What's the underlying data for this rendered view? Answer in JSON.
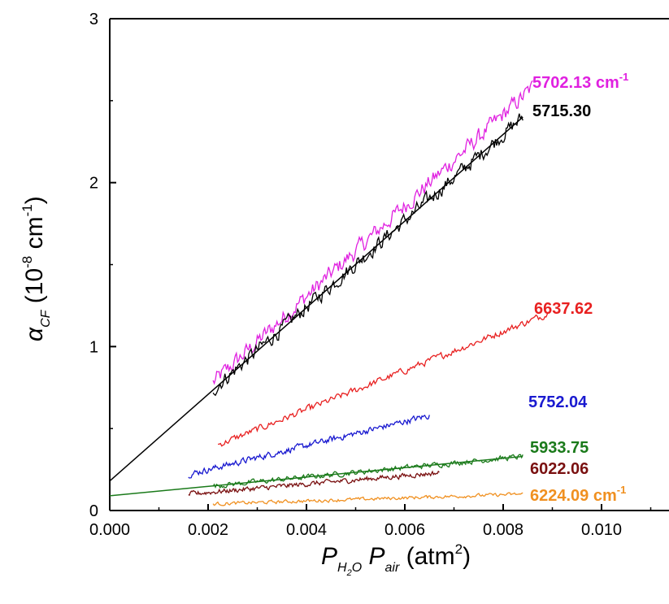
{
  "chart_data": {
    "type": "line",
    "xlabel": {
      "main": "P",
      "sub1": "H",
      "sub1b": "2",
      "sub1c": "O",
      "mid": " P",
      "sub2": "air",
      "unit_open": " (atm",
      "sup": "2",
      "unit_close": ")"
    },
    "ylabel": {
      "main": "α",
      "sub": "CF",
      "unit_open": " (10",
      "sup1": "-8",
      "unit_mid": " cm",
      "sup2": "-1",
      "unit_close": ")"
    },
    "xlim": [
      0.0,
      0.012
    ],
    "ylim": [
      0,
      3
    ],
    "x_ticks": [
      0.0,
      0.002,
      0.004,
      0.006,
      0.008,
      0.01
    ],
    "x_tick_labels": [
      "0.000",
      "0.002",
      "0.004",
      "0.006",
      "0.008",
      "0.010"
    ],
    "y_ticks": [
      0,
      1,
      2,
      3
    ],
    "y_tick_labels": [
      "0",
      "1",
      "2",
      "3"
    ],
    "series": [
      {
        "label": "5702.13",
        "unit": "cm",
        "unit_sup": "-1",
        "color": "#e020e0",
        "x_start": 0.0021,
        "x_end": 0.0086,
        "y_start": 0.78,
        "y_end": 2.58,
        "noise": 0.045
      },
      {
        "label": "5715.30",
        "color": "#000000",
        "x_start": 0.0021,
        "x_end": 0.0084,
        "y_start": 0.74,
        "y_end": 2.4,
        "noise": 0.04
      },
      {
        "label": "6637.62",
        "color": "#e82020",
        "x_start": 0.0022,
        "x_end": 0.0089,
        "y_start": 0.4,
        "y_end": 1.2,
        "noise": 0.018
      },
      {
        "label": "5752.04",
        "color": "#1a1ad0",
        "x_start": 0.0016,
        "x_end": 0.0065,
        "y_start": 0.22,
        "y_end": 0.58,
        "noise": 0.016
      },
      {
        "label": "5933.75",
        "color": "#1a7a1a",
        "x_start": 0.0021,
        "x_end": 0.0084,
        "y_start": 0.15,
        "y_end": 0.33,
        "noise": 0.014
      },
      {
        "label": "6022.06",
        "color": "#7a1010",
        "x_start": 0.0016,
        "x_end": 0.0067,
        "y_start": 0.1,
        "y_end": 0.23,
        "noise": 0.013
      },
      {
        "label": "6224.09",
        "unit": "cm",
        "unit_sup": "-1",
        "color": "#f09020",
        "x_start": 0.0021,
        "x_end": 0.0084,
        "y_start": 0.04,
        "y_end": 0.1,
        "noise": 0.009
      }
    ],
    "fit_lines": [
      {
        "color": "#000000",
        "x": [
          0.0,
          0.0084
        ],
        "y": [
          0.18,
          2.4
        ]
      },
      {
        "color": "#1a7a1a",
        "x": [
          0.0,
          0.0084
        ],
        "y": [
          0.09,
          0.33
        ]
      }
    ],
    "grid": false
  }
}
